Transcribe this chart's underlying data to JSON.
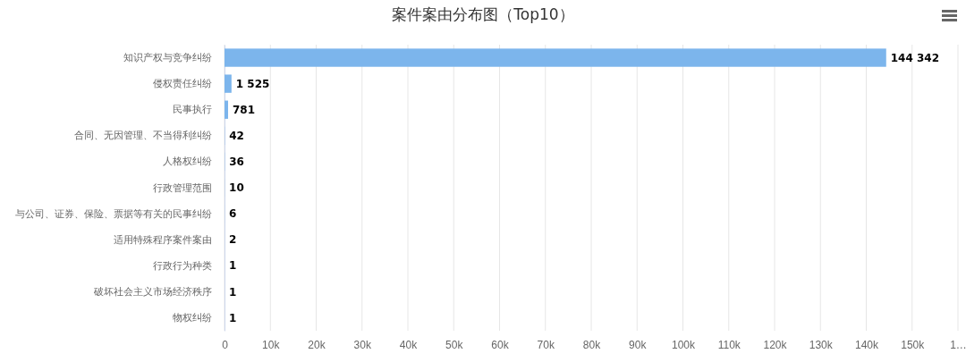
{
  "chart_data": {
    "type": "bar",
    "orientation": "horizontal",
    "title": "案件案由分布图（Top10）",
    "categories": [
      "知识产权与竞争纠纷",
      "侵权责任纠纷",
      "民事执行",
      "合同、无因管理、不当得利纠纷",
      "人格权纠纷",
      "行政管理范围",
      "与公司、证券、保险、票据等有关的民事纠纷",
      "适用特殊程序案件案由",
      "行政行为种类",
      "破坏社会主义市场经济秩序",
      "物权纠纷"
    ],
    "values": [
      144342,
      1525,
      781,
      42,
      36,
      10,
      6,
      2,
      1,
      1,
      1
    ],
    "value_labels": [
      "144 342",
      "1 525",
      "781",
      "42",
      "36",
      "10",
      "6",
      "2",
      "1",
      "1",
      "1"
    ],
    "color": "#7cb5ec",
    "xlim": [
      0,
      160000
    ],
    "xticks": [
      0,
      {
        "value": 10000,
        "label": "10k"
      },
      {
        "value": 20000,
        "label": "20k"
      },
      {
        "value": 30000,
        "label": "30k"
      },
      {
        "value": 40000,
        "label": "40k"
      },
      {
        "value": 50000,
        "label": "50k"
      },
      {
        "value": 60000,
        "label": "60k"
      },
      {
        "value": 70000,
        "label": "70k"
      },
      {
        "value": 80000,
        "label": "80k"
      },
      {
        "value": 90000,
        "label": "90k"
      },
      {
        "value": 100000,
        "label": "100k"
      },
      {
        "value": 110000,
        "label": "110k"
      },
      {
        "value": 120000,
        "label": "120k"
      },
      {
        "value": 130000,
        "label": "130k"
      },
      {
        "value": 140000,
        "label": "140k"
      },
      {
        "value": 150000,
        "label": "150k"
      },
      {
        "value": 160000,
        "label": "1…"
      }
    ],
    "grid": "x"
  }
}
